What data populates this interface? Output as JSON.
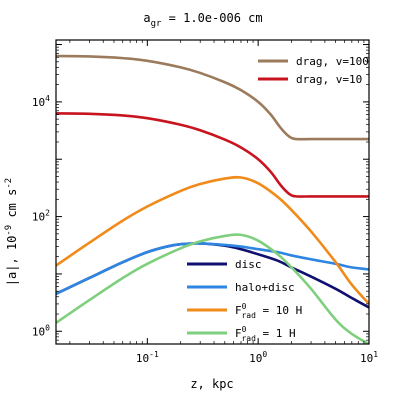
{
  "chart_data": {
    "type": "line",
    "title": {
      "prefix": "a",
      "sub": "gr",
      "rest": " = 1.0e-006 cm"
    },
    "xlabel": "z, kpc",
    "ylabel": {
      "main": "|a|, 10",
      "sup1": "-9",
      "mid": " cm s",
      "sup2": "-2"
    },
    "xscale": "log",
    "yscale": "log",
    "xlim": [
      0.015,
      10
    ],
    "ylim": [
      0.6,
      120000
    ],
    "x_ticks": [
      {
        "value": 0.1,
        "base": "10",
        "exp": "-1"
      },
      {
        "value": 1,
        "base": "10",
        "exp": "0"
      },
      {
        "value": 10,
        "base": "10",
        "exp": "1"
      }
    ],
    "y_ticks": [
      {
        "value": 1,
        "base": "10",
        "exp": "0"
      },
      {
        "value": 100,
        "base": "10",
        "exp": "2"
      },
      {
        "value": 10000,
        "base": "10",
        "exp": "4"
      }
    ],
    "series": [
      {
        "key": "drag100",
        "name": "drag, v=100",
        "color": "#9C7B5C",
        "legend_group": "top",
        "x": [
          0.015,
          0.03,
          0.06,
          0.1,
          0.2,
          0.3,
          0.5,
          0.7,
          1.0,
          1.3,
          1.6,
          1.9,
          2.2,
          3,
          5,
          10
        ],
        "y": [
          63000,
          62000,
          58000,
          52000,
          40000,
          32000,
          22000,
          16000,
          10000,
          6000,
          3500,
          2500,
          2250,
          2250,
          2250,
          2250
        ]
      },
      {
        "key": "drag10",
        "name": "drag, v=10",
        "color": "#C8141E",
        "legend_group": "top",
        "x": [
          0.015,
          0.03,
          0.06,
          0.1,
          0.2,
          0.3,
          0.5,
          0.7,
          1.0,
          1.3,
          1.6,
          1.9,
          2.2,
          3,
          5,
          10
        ],
        "y": [
          6300,
          6200,
          5800,
          5200,
          4000,
          3200,
          2200,
          1600,
          1000,
          600,
          350,
          250,
          225,
          225,
          225,
          225
        ]
      },
      {
        "key": "disc",
        "name": "disc",
        "color": "#101070",
        "legend_group": "bottom",
        "x": [
          0.015,
          0.03,
          0.06,
          0.1,
          0.15,
          0.2,
          0.3,
          0.5,
          0.7,
          1.0,
          1.5,
          2,
          3,
          5,
          7,
          10
        ],
        "y": [
          4.5,
          8.5,
          16,
          24,
          30,
          33,
          34,
          31,
          27,
          22,
          17,
          13,
          9,
          5.5,
          3.8,
          2.6
        ]
      },
      {
        "key": "halodisc",
        "name": "halo+disc",
        "color": "#2E86E0",
        "legend_group": "bottom",
        "x": [
          0.015,
          0.03,
          0.06,
          0.1,
          0.15,
          0.2,
          0.3,
          0.5,
          0.7,
          1.0,
          1.5,
          2,
          3,
          5,
          7,
          10
        ],
        "y": [
          4.5,
          8.5,
          16,
          24,
          30,
          33,
          34,
          32,
          30,
          27,
          24,
          21,
          18,
          15,
          13,
          12
        ]
      },
      {
        "key": "frad10",
        "name": "= 10 H",
        "legend_label": {
          "base": "F",
          "sup": "0",
          "sub": "rad",
          "rest": " = 10 H"
        },
        "color": "#F08A1A",
        "legend_group": "bottom",
        "x": [
          0.015,
          0.03,
          0.06,
          0.1,
          0.2,
          0.3,
          0.5,
          0.7,
          1.0,
          1.5,
          2,
          3,
          5,
          7,
          10
        ],
        "y": [
          14,
          35,
          85,
          150,
          280,
          370,
          460,
          480,
          380,
          220,
          130,
          55,
          16,
          6.5,
          3.0
        ]
      },
      {
        "key": "frad1",
        "name": "= 1 H",
        "legend_label": {
          "base": "F",
          "sup": "0",
          "sub": "rad",
          "rest": " = 1 H"
        },
        "color": "#7FCF7F",
        "legend_group": "bottom",
        "x": [
          0.015,
          0.03,
          0.06,
          0.1,
          0.2,
          0.3,
          0.5,
          0.7,
          1.0,
          1.5,
          2,
          3,
          5,
          7,
          10
        ],
        "y": [
          1.4,
          3.5,
          8.5,
          15,
          28,
          37,
          46,
          48,
          38,
          22,
          13,
          5.5,
          1.6,
          0.9,
          0.6
        ]
      }
    ],
    "grid": false,
    "legend": {
      "top_group": "top-right",
      "bottom_group": "lower-center"
    }
  }
}
